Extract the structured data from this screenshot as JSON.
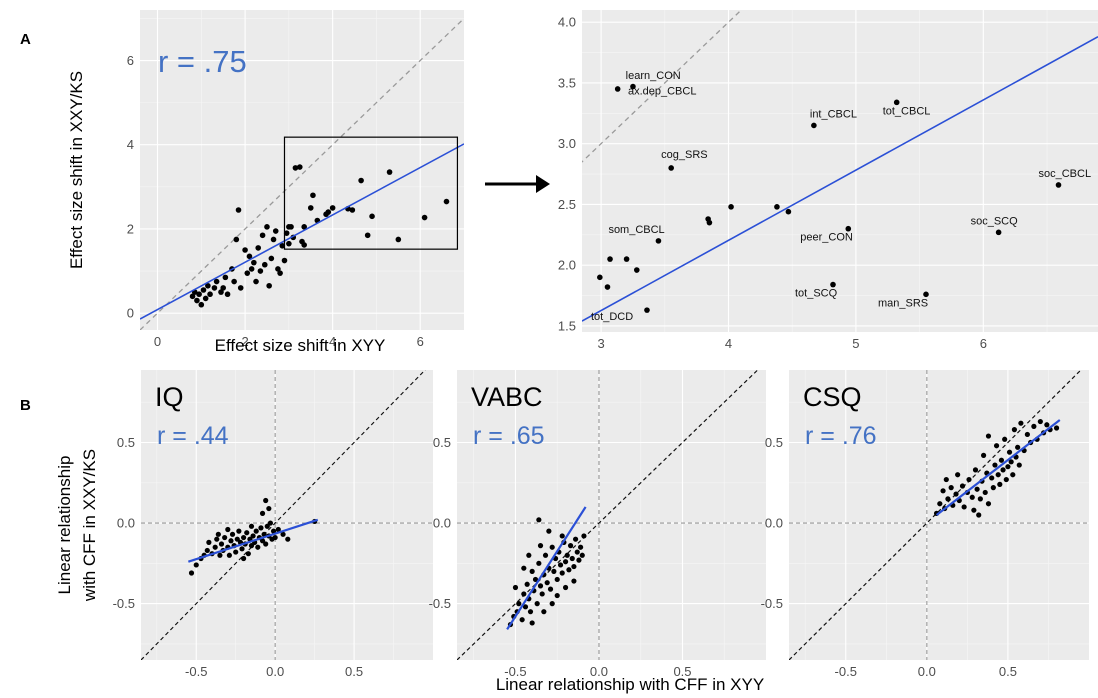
{
  "panel_letters": {
    "a": "A",
    "b": "B"
  },
  "arrow_color": "#000000",
  "fit_color": "#2b50d6",
  "r_color": "#4472c4",
  "chart_data": [
    {
      "id": "A-main",
      "type": "scatter",
      "xlabel": "Effect size shift in XYY",
      "ylabel": "Effect size shift in XXY/KS",
      "xlim": [
        -0.4,
        7
      ],
      "ylim": [
        -0.4,
        7.2
      ],
      "xticks": [
        0,
        2,
        4,
        6
      ],
      "yticks": [
        0,
        2,
        4,
        6
      ],
      "annotation": "r = .75",
      "identity_line": true,
      "fit": {
        "x": [
          -0.4,
          7
        ],
        "y": [
          -0.14,
          4.02
        ]
      },
      "inset_box": {
        "x": [
          2.9,
          6.85
        ],
        "y": [
          1.52,
          4.18
        ]
      },
      "points": [
        [
          0.8,
          0.4
        ],
        [
          0.85,
          0.5
        ],
        [
          0.9,
          0.3
        ],
        [
          0.95,
          0.45
        ],
        [
          1.0,
          0.2
        ],
        [
          1.05,
          0.55
        ],
        [
          1.1,
          0.35
        ],
        [
          1.15,
          0.65
        ],
        [
          1.2,
          0.45
        ],
        [
          1.3,
          0.6
        ],
        [
          1.35,
          0.75
        ],
        [
          1.45,
          0.5
        ],
        [
          1.5,
          0.6
        ],
        [
          1.55,
          0.85
        ],
        [
          1.6,
          0.45
        ],
        [
          1.7,
          1.05
        ],
        [
          1.75,
          0.75
        ],
        [
          1.8,
          1.75
        ],
        [
          1.85,
          2.45
        ],
        [
          1.9,
          0.6
        ],
        [
          2.0,
          1.5
        ],
        [
          2.05,
          0.95
        ],
        [
          2.1,
          1.35
        ],
        [
          2.15,
          1.05
        ],
        [
          2.2,
          1.2
        ],
        [
          2.25,
          0.75
        ],
        [
          2.3,
          1.55
        ],
        [
          2.35,
          1.0
        ],
        [
          2.4,
          1.85
        ],
        [
          2.45,
          1.15
        ],
        [
          2.5,
          2.05
        ],
        [
          2.55,
          0.65
        ],
        [
          2.6,
          1.3
        ],
        [
          2.65,
          1.75
        ],
        [
          2.7,
          1.95
        ],
        [
          2.75,
          1.05
        ],
        [
          2.8,
          0.95
        ],
        [
          2.85,
          1.6
        ],
        [
          2.9,
          1.25
        ],
        [
          2.95,
          1.9
        ],
        [
          3.0,
          1.65
        ],
        [
          3.05,
          2.05
        ],
        [
          3.1,
          1.8
        ],
        [
          3.15,
          3.45
        ],
        [
          3.25,
          3.47
        ],
        [
          3.3,
          1.7
        ],
        [
          3.35,
          2.05
        ],
        [
          3.5,
          2.5
        ],
        [
          3.55,
          2.8
        ],
        [
          3.65,
          2.2
        ],
        [
          3.85,
          2.35
        ],
        [
          3.9,
          2.4
        ],
        [
          4.0,
          2.5
        ],
        [
          4.35,
          2.48
        ],
        [
          4.45,
          2.45
        ],
        [
          4.65,
          3.15
        ],
        [
          4.8,
          1.85
        ],
        [
          4.9,
          2.3
        ],
        [
          5.3,
          3.35
        ],
        [
          5.5,
          1.75
        ],
        [
          6.1,
          2.27
        ],
        [
          6.6,
          2.65
        ],
        [
          3.35,
          1.62
        ],
        [
          3.0,
          2.05
        ]
      ]
    },
    {
      "id": "A-inset",
      "type": "scatter",
      "xlim": [
        2.85,
        6.9
      ],
      "ylim": [
        1.45,
        4.1
      ],
      "xticks": [
        3,
        4,
        5,
        6
      ],
      "yticks": [
        1.5,
        2.0,
        2.5,
        3.0,
        3.5,
        4.0
      ],
      "xtick_labels": [
        "3",
        "4",
        "5",
        "6"
      ],
      "ytick_labels": [
        "1.5",
        "2.0",
        "2.5",
        "3.0",
        "3.5",
        "4.0"
      ],
      "identity_line": true,
      "fit": {
        "x": [
          2.85,
          6.9
        ],
        "y": [
          1.54,
          3.88
        ]
      },
      "points": [
        {
          "x": 3.13,
          "y": 3.45,
          "label": "learn_CON"
        },
        {
          "x": 3.25,
          "y": 3.47,
          "label": "ax.dep_CBCL"
        },
        {
          "x": 3.55,
          "y": 2.8,
          "label": "cog_SRS"
        },
        {
          "x": 4.67,
          "y": 3.15,
          "label": "int_CBCL"
        },
        {
          "x": 5.32,
          "y": 3.34,
          "label": "tot_CBCL"
        },
        {
          "x": 6.59,
          "y": 2.66,
          "label": "soc_CBCL"
        },
        {
          "x": 6.12,
          "y": 2.27,
          "label": "soc_SCQ"
        },
        {
          "x": 4.94,
          "y": 2.3,
          "label": "peer_CON"
        },
        {
          "x": 3.45,
          "y": 2.2,
          "label": "som_CBCL"
        },
        {
          "x": 4.82,
          "y": 1.84,
          "label": "tot_SCQ"
        },
        {
          "x": 5.55,
          "y": 1.76,
          "label": "man_SRS"
        },
        {
          "x": 3.36,
          "y": 1.63,
          "label": "tot_DCD"
        },
        {
          "x": 2.99,
          "y": 1.9
        },
        {
          "x": 3.05,
          "y": 1.82
        },
        {
          "x": 3.07,
          "y": 2.05
        },
        {
          "x": 3.2,
          "y": 2.05
        },
        {
          "x": 3.28,
          "y": 1.96
        },
        {
          "x": 3.84,
          "y": 2.38
        },
        {
          "x": 3.85,
          "y": 2.35
        },
        {
          "x": 4.02,
          "y": 2.48
        },
        {
          "x": 4.38,
          "y": 2.48
        },
        {
          "x": 4.47,
          "y": 2.44
        }
      ]
    },
    {
      "id": "B-IQ",
      "type": "scatter",
      "title": "IQ",
      "annotation": "r = .44",
      "xlim": [
        -0.85,
        1.0
      ],
      "ylim": [
        -0.85,
        0.95
      ],
      "xticks": [
        -0.5,
        0.0,
        0.5
      ],
      "yticks": [
        -0.5,
        0.0,
        0.5
      ],
      "xtick_labels": [
        "-0.5",
        "0.0",
        "0.5"
      ],
      "ytick_labels": [
        "-0.5",
        "0.0",
        "0.5"
      ],
      "fit": {
        "x": [
          -0.55,
          0.27
        ],
        "y": [
          -0.24,
          0.02
        ]
      },
      "points": [
        [
          -0.53,
          -0.31
        ],
        [
          -0.5,
          -0.26
        ],
        [
          -0.47,
          -0.22
        ],
        [
          -0.45,
          -0.2
        ],
        [
          -0.43,
          -0.17
        ],
        [
          -0.42,
          -0.12
        ],
        [
          -0.4,
          -0.19
        ],
        [
          -0.38,
          -0.15
        ],
        [
          -0.37,
          -0.1
        ],
        [
          -0.35,
          -0.2
        ],
        [
          -0.34,
          -0.13
        ],
        [
          -0.33,
          -0.17
        ],
        [
          -0.32,
          -0.09
        ],
        [
          -0.3,
          -0.15
        ],
        [
          -0.29,
          -0.2
        ],
        [
          -0.28,
          -0.11
        ],
        [
          -0.27,
          -0.07
        ],
        [
          -0.26,
          -0.14
        ],
        [
          -0.25,
          -0.18
        ],
        [
          -0.24,
          -0.1
        ],
        [
          -0.23,
          -0.05
        ],
        [
          -0.22,
          -0.12
        ],
        [
          -0.21,
          -0.16
        ],
        [
          -0.2,
          -0.09
        ],
        [
          -0.19,
          -0.13
        ],
        [
          -0.18,
          -0.06
        ],
        [
          -0.17,
          -0.19
        ],
        [
          -0.16,
          -0.1
        ],
        [
          -0.15,
          -0.14
        ],
        [
          -0.14,
          -0.08
        ],
        [
          -0.13,
          -0.12
        ],
        [
          -0.12,
          -0.05
        ],
        [
          -0.11,
          -0.15
        ],
        [
          -0.1,
          -0.09
        ],
        [
          -0.09,
          -0.03
        ],
        [
          -0.08,
          -0.11
        ],
        [
          -0.07,
          -0.07
        ],
        [
          -0.06,
          -0.13
        ],
        [
          -0.05,
          -0.02
        ],
        [
          -0.04,
          -0.08
        ],
        [
          -0.03,
          0.0
        ],
        [
          -0.02,
          -0.1
        ],
        [
          -0.01,
          -0.05
        ],
        [
          0.0,
          -0.09
        ],
        [
          0.02,
          -0.04
        ],
        [
          0.05,
          -0.07
        ],
        [
          0.08,
          -0.1
        ],
        [
          -0.06,
          0.14
        ],
        [
          -0.08,
          0.06
        ],
        [
          -0.04,
          0.09
        ],
        [
          -0.3,
          -0.04
        ],
        [
          -0.2,
          -0.22
        ],
        [
          0.25,
          0.01
        ],
        [
          -0.15,
          -0.02
        ],
        [
          -0.36,
          -0.07
        ]
      ]
    },
    {
      "id": "B-VABC",
      "type": "scatter",
      "title": "VABC",
      "annotation": "r = .65",
      "xlim": [
        -0.85,
        1.0
      ],
      "ylim": [
        -0.85,
        0.95
      ],
      "xticks": [
        -0.5,
        0.0,
        0.5
      ],
      "yticks": [
        -0.5,
        0.0,
        0.5
      ],
      "xtick_labels": [
        "-0.5",
        "0.0",
        "0.5"
      ],
      "ytick_labels": [
        "-0.5",
        "0.0",
        "0.5"
      ],
      "fit": {
        "x": [
          -0.55,
          -0.08
        ],
        "y": [
          -0.66,
          0.1
        ]
      },
      "points": [
        [
          -0.53,
          -0.63
        ],
        [
          -0.51,
          -0.58
        ],
        [
          -0.49,
          -0.55
        ],
        [
          -0.48,
          -0.5
        ],
        [
          -0.46,
          -0.6
        ],
        [
          -0.45,
          -0.44
        ],
        [
          -0.44,
          -0.52
        ],
        [
          -0.43,
          -0.38
        ],
        [
          -0.42,
          -0.47
        ],
        [
          -0.41,
          -0.55
        ],
        [
          -0.4,
          -0.3
        ],
        [
          -0.39,
          -0.42
        ],
        [
          -0.38,
          -0.35
        ],
        [
          -0.37,
          -0.5
        ],
        [
          -0.36,
          -0.25
        ],
        [
          -0.35,
          -0.39
        ],
        [
          -0.34,
          -0.44
        ],
        [
          -0.33,
          -0.32
        ],
        [
          -0.32,
          -0.2
        ],
        [
          -0.31,
          -0.37
        ],
        [
          -0.3,
          -0.28
        ],
        [
          -0.29,
          -0.41
        ],
        [
          -0.28,
          -0.15
        ],
        [
          -0.27,
          -0.3
        ],
        [
          -0.26,
          -0.22
        ],
        [
          -0.25,
          -0.35
        ],
        [
          -0.24,
          -0.18
        ],
        [
          -0.23,
          -0.26
        ],
        [
          -0.22,
          -0.31
        ],
        [
          -0.21,
          -0.12
        ],
        [
          -0.2,
          -0.24
        ],
        [
          -0.19,
          -0.2
        ],
        [
          -0.18,
          -0.29
        ],
        [
          -0.17,
          -0.14
        ],
        [
          -0.16,
          -0.22
        ],
        [
          -0.15,
          -0.27
        ],
        [
          -0.14,
          -0.1
        ],
        [
          -0.13,
          -0.18
        ],
        [
          -0.12,
          -0.23
        ],
        [
          -0.11,
          -0.15
        ],
        [
          -0.1,
          -0.2
        ],
        [
          -0.09,
          -0.08
        ],
        [
          -0.36,
          0.02
        ],
        [
          -0.3,
          -0.05
        ],
        [
          -0.45,
          -0.28
        ],
        [
          -0.5,
          -0.4
        ],
        [
          -0.2,
          -0.4
        ],
        [
          -0.25,
          -0.45
        ],
        [
          -0.33,
          -0.55
        ],
        [
          -0.4,
          -0.62
        ],
        [
          -0.15,
          -0.36
        ],
        [
          -0.28,
          -0.5
        ],
        [
          -0.22,
          -0.08
        ],
        [
          -0.35,
          -0.14
        ],
        [
          -0.42,
          -0.2
        ]
      ]
    },
    {
      "id": "B-CSQ",
      "type": "scatter",
      "title": "CSQ",
      "annotation": "r = .76",
      "xlim": [
        -0.85,
        1.0
      ],
      "ylim": [
        -0.85,
        0.95
      ],
      "xticks": [
        -0.5,
        0.0,
        0.5
      ],
      "yticks": [
        -0.5,
        0.0,
        0.5
      ],
      "xtick_labels": [
        "-0.5",
        "0.0",
        "0.5"
      ],
      "ytick_labels": [
        "-0.5",
        "0.0",
        "0.5"
      ],
      "fit": {
        "x": [
          0.06,
          0.82
        ],
        "y": [
          0.05,
          0.64
        ]
      },
      "points": [
        [
          0.06,
          0.06
        ],
        [
          0.08,
          0.12
        ],
        [
          0.1,
          0.2
        ],
        [
          0.11,
          0.09
        ],
        [
          0.12,
          0.27
        ],
        [
          0.13,
          0.15
        ],
        [
          0.15,
          0.22
        ],
        [
          0.16,
          0.11
        ],
        [
          0.18,
          0.18
        ],
        [
          0.19,
          0.3
        ],
        [
          0.2,
          0.14
        ],
        [
          0.22,
          0.23
        ],
        [
          0.23,
          0.1
        ],
        [
          0.25,
          0.19
        ],
        [
          0.26,
          0.27
        ],
        [
          0.28,
          0.16
        ],
        [
          0.29,
          0.08
        ],
        [
          0.3,
          0.33
        ],
        [
          0.31,
          0.21
        ],
        [
          0.33,
          0.15
        ],
        [
          0.34,
          0.26
        ],
        [
          0.35,
          0.42
        ],
        [
          0.36,
          0.19
        ],
        [
          0.37,
          0.31
        ],
        [
          0.38,
          0.12
        ],
        [
          0.4,
          0.28
        ],
        [
          0.41,
          0.22
        ],
        [
          0.42,
          0.36
        ],
        [
          0.43,
          0.48
        ],
        [
          0.44,
          0.3
        ],
        [
          0.45,
          0.24
        ],
        [
          0.46,
          0.39
        ],
        [
          0.47,
          0.33
        ],
        [
          0.48,
          0.52
        ],
        [
          0.49,
          0.27
        ],
        [
          0.5,
          0.35
        ],
        [
          0.51,
          0.44
        ],
        [
          0.52,
          0.38
        ],
        [
          0.53,
          0.3
        ],
        [
          0.54,
          0.58
        ],
        [
          0.55,
          0.41
        ],
        [
          0.56,
          0.47
        ],
        [
          0.57,
          0.36
        ],
        [
          0.58,
          0.62
        ],
        [
          0.6,
          0.45
        ],
        [
          0.62,
          0.55
        ],
        [
          0.64,
          0.5
        ],
        [
          0.66,
          0.6
        ],
        [
          0.68,
          0.52
        ],
        [
          0.7,
          0.63
        ],
        [
          0.72,
          0.56
        ],
        [
          0.74,
          0.61
        ],
        [
          0.76,
          0.58
        ],
        [
          0.8,
          0.59
        ],
        [
          0.38,
          0.54
        ],
        [
          0.32,
          0.05
        ]
      ]
    }
  ],
  "bottom_xlabel": "Linear relationship with CFF in XYY",
  "bottom_ylabel_lines": [
    "Linear relationship",
    "with CFF in XXY/KS"
  ]
}
